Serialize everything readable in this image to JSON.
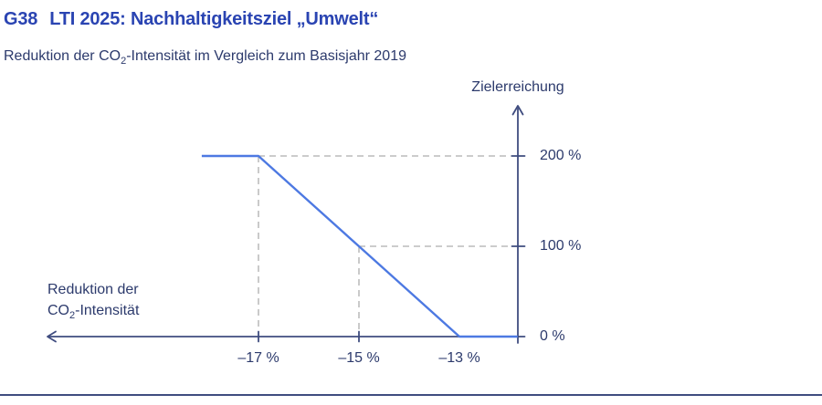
{
  "figure": {
    "number": "G38",
    "title": "LTI 2025: Nachhaltigkeitsziel „Umwelt“"
  },
  "subtitle": {
    "pre": "Reduktion der CO",
    "sub": "2",
    "post": "-Intensität im Vergleich zum Basisjahr 2019"
  },
  "axis_titles": {
    "y": "Zielerreichung",
    "x_line1": "Reduktion der",
    "x_line2_pre": "CO",
    "x_line2_sub": "2",
    "x_line2_post": "-Intensität"
  },
  "colors": {
    "title_blue": "#2a44b2",
    "text_navy": "#2c3a6c",
    "axis_navy": "#3f4c7f",
    "series_blue": "#4d79e2",
    "dash_gray": "#adadad"
  },
  "chart_data": {
    "type": "line",
    "title": "G38 LTI 2025: Nachhaltigkeitsziel „Umwelt“",
    "subtitle": "Reduktion der CO₂-Intensität im Vergleich zum Basisjahr 2019",
    "xlabel": "Reduktion der CO₂-Intensität",
    "ylabel": "Zielerreichung",
    "grid": "off",
    "legend": "none",
    "x_axis": {
      "arrow": "left",
      "unit": "%",
      "tick_labels": [
        "–17 %",
        "–15 %",
        "–13 %"
      ],
      "tick_values": [
        -17,
        -15,
        -13
      ],
      "tick_marks": [
        -17,
        -15
      ]
    },
    "y_axis": {
      "arrow": "up",
      "unit": "%",
      "tick_labels": [
        "200 %",
        "100 %",
        "0 %"
      ],
      "tick_values": [
        200,
        100,
        0
      ],
      "ylim": [
        0,
        200
      ]
    },
    "series": [
      {
        "name": "Zielerreichung",
        "color": "#4d79e2",
        "width": 2.4,
        "points": [
          {
            "x": -18.13,
            "y": 200
          },
          {
            "x": -17,
            "y": 200
          },
          {
            "x": -15,
            "y": 100
          },
          {
            "x": -13,
            "y": 0
          },
          {
            "x": -11.84,
            "y": 0
          }
        ]
      }
    ],
    "reference_points": [
      {
        "x": -17,
        "y": 200
      },
      {
        "x": -15,
        "y": 100
      }
    ]
  }
}
